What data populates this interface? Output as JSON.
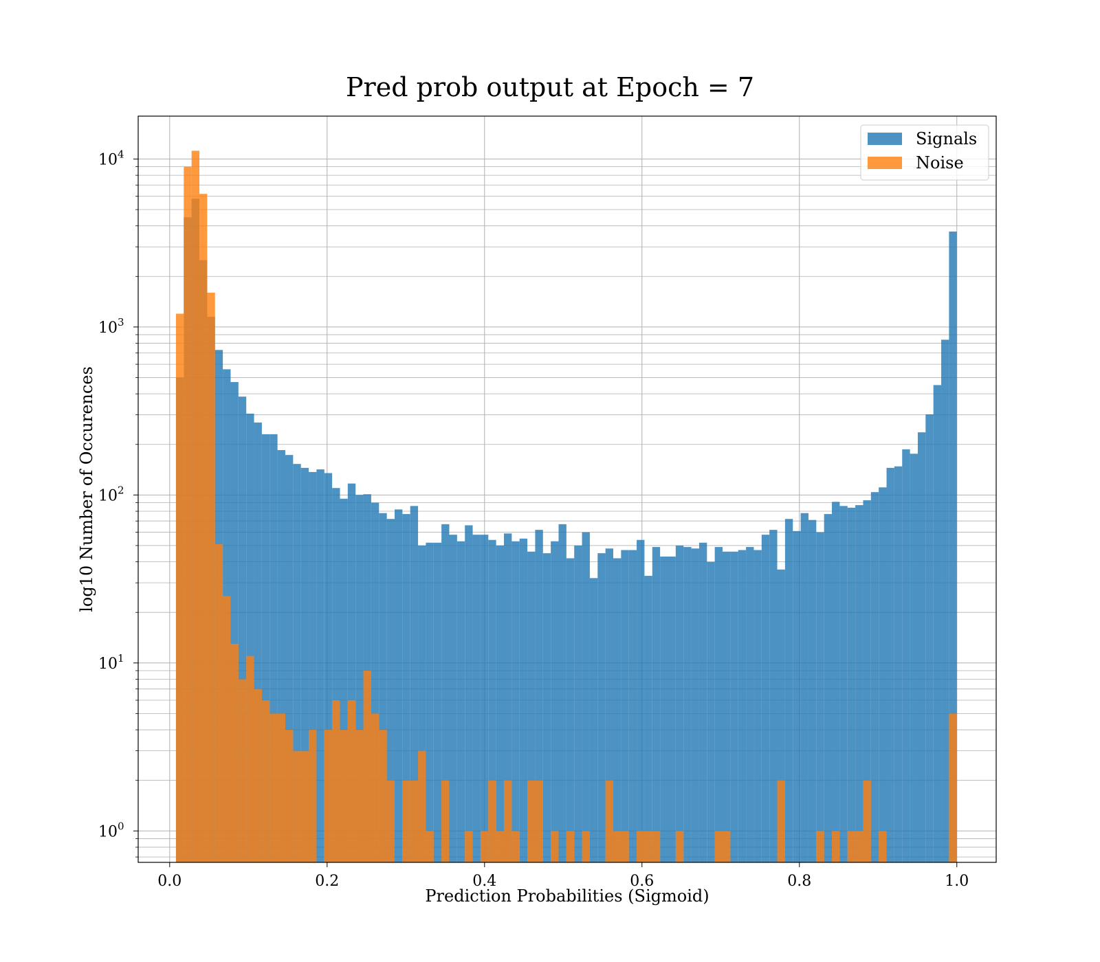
{
  "chart_data": {
    "type": "bar",
    "title": "Pred prob output at Epoch = 7",
    "xlabel": "Prediction Probabilities (Sigmoid)",
    "ylabel": "log10 Number of Occurences",
    "xlim": [
      -0.04,
      1.05
    ],
    "ylim": [
      0.65,
      18000
    ],
    "yscale": "log",
    "grid": true,
    "legend_position": "top-right",
    "x_ticks": [
      "0.0",
      "0.2",
      "0.4",
      "0.6",
      "0.8",
      "1.0"
    ],
    "y_ticks": [
      {
        "base": "10",
        "exp": "0"
      },
      {
        "base": "10",
        "exp": "1"
      },
      {
        "base": "10",
        "exp": "2"
      },
      {
        "base": "10",
        "exp": "3"
      },
      {
        "base": "10",
        "exp": "4"
      }
    ],
    "bin_edges_range": [
      0.008,
      1.0
    ],
    "bin_count": 100,
    "series": [
      {
        "name": "Signals",
        "color": "#1f77b4",
        "values": [
          500,
          4500,
          5800,
          2500,
          1150,
          730,
          560,
          470,
          385,
          305,
          270,
          230,
          230,
          185,
          173,
          153,
          145,
          137,
          142,
          135,
          110,
          95,
          117,
          100,
          101,
          90,
          78,
          72,
          82,
          77,
          86,
          50,
          52,
          52,
          67,
          58,
          53,
          66,
          58,
          58,
          54,
          50,
          59,
          53,
          55,
          46,
          62,
          45,
          53,
          67,
          42,
          50,
          60,
          32,
          45,
          48,
          42,
          47,
          47,
          54,
          33,
          49,
          43,
          43,
          50,
          49,
          48,
          52,
          40,
          49,
          46,
          46,
          47,
          49,
          47,
          58,
          62,
          36,
          72,
          61,
          78,
          71,
          60,
          77,
          91,
          86,
          84,
          87,
          93,
          104,
          111,
          145,
          148,
          187,
          176,
          236,
          302,
          451,
          840,
          3700
        ]
      },
      {
        "name": "Noise",
        "color": "#ff7f0e",
        "values": [
          1200,
          9000,
          11200,
          6200,
          1600,
          51,
          25,
          13,
          8,
          11,
          7,
          6,
          5,
          5,
          4,
          3,
          3,
          4,
          0,
          4,
          6,
          4,
          6,
          4,
          9,
          5,
          4,
          2,
          0,
          2,
          2,
          3,
          1,
          0,
          2,
          0,
          0,
          1,
          0,
          1,
          2,
          1,
          2,
          1,
          0,
          2,
          2,
          0,
          1,
          0,
          1,
          0,
          1,
          0,
          0,
          2,
          1,
          1,
          0,
          1,
          1,
          1,
          0,
          0,
          1,
          0,
          0,
          0,
          0,
          1,
          1,
          0,
          0,
          0,
          0,
          0,
          0,
          2,
          0,
          0,
          0,
          0,
          1,
          0,
          1,
          0,
          1,
          1,
          2,
          0,
          1,
          0,
          0,
          0,
          0,
          0,
          0,
          0,
          0,
          5
        ]
      }
    ]
  }
}
